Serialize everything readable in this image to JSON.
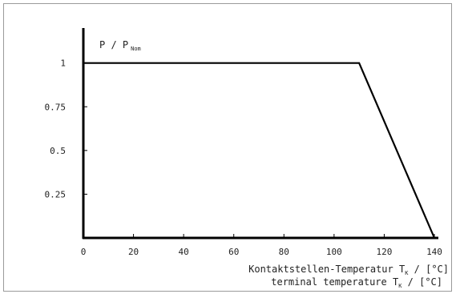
{
  "chart_data": {
    "type": "line",
    "xlim": [
      0,
      140
    ],
    "ylim": [
      0,
      1.2
    ],
    "x_ticks": [
      "0",
      "20",
      "40",
      "60",
      "80",
      "100",
      "120",
      "140"
    ],
    "y_ticks": [
      "0.25",
      "0.5",
      "0.75",
      "1"
    ],
    "series": [
      {
        "x": [
          0,
          110,
          140
        ],
        "y": [
          1,
          1,
          0
        ]
      }
    ],
    "ylabel": {
      "main": "P / P",
      "sub": "Nom"
    },
    "xlabel_lines": [
      {
        "prefix": "Kontaktstellen-Temperatur T",
        "sub": "K",
        "suffix": " / [°C]"
      },
      {
        "prefix": "terminal temperature T",
        "sub": "K",
        "suffix": " / [°C]"
      }
    ],
    "grid": false,
    "colors": {
      "line": "#000000",
      "axis": "#000000",
      "frame": "#9a9a9a"
    }
  }
}
